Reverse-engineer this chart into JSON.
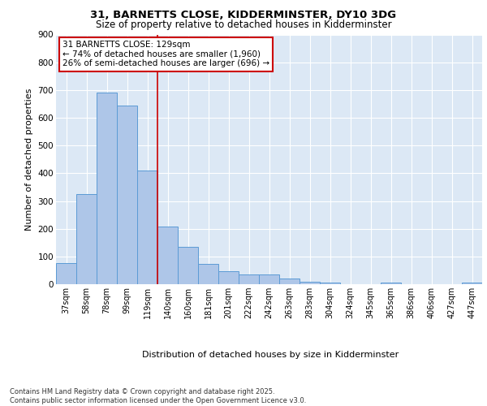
{
  "title1": "31, BARNETTS CLOSE, KIDDERMINSTER, DY10 3DG",
  "title2": "Size of property relative to detached houses in Kidderminster",
  "xlabel": "Distribution of detached houses by size in Kidderminster",
  "ylabel": "Number of detached properties",
  "categories": [
    "37sqm",
    "58sqm",
    "78sqm",
    "99sqm",
    "119sqm",
    "140sqm",
    "160sqm",
    "181sqm",
    "201sqm",
    "222sqm",
    "242sqm",
    "263sqm",
    "283sqm",
    "304sqm",
    "324sqm",
    "345sqm",
    "365sqm",
    "386sqm",
    "406sqm",
    "427sqm",
    "447sqm"
  ],
  "values": [
    75,
    325,
    690,
    645,
    410,
    207,
    135,
    72,
    47,
    35,
    35,
    20,
    10,
    5,
    0,
    0,
    5,
    0,
    0,
    0,
    5
  ],
  "bar_color": "#aec6e8",
  "bar_edge_color": "#5b9bd5",
  "annotation_text": "31 BARNETTS CLOSE: 129sqm\n← 74% of detached houses are smaller (1,960)\n26% of semi-detached houses are larger (696) →",
  "annotation_box_color": "#ffffff",
  "annotation_box_edge_color": "#cc0000",
  "vline_color": "#cc0000",
  "vline_x": 4.5,
  "ylim": [
    0,
    900
  ],
  "yticks": [
    0,
    100,
    200,
    300,
    400,
    500,
    600,
    700,
    800,
    900
  ],
  "footer": "Contains HM Land Registry data © Crown copyright and database right 2025.\nContains public sector information licensed under the Open Government Licence v3.0.",
  "bg_color": "#dce8f5",
  "fig_bg_color": "#ffffff"
}
